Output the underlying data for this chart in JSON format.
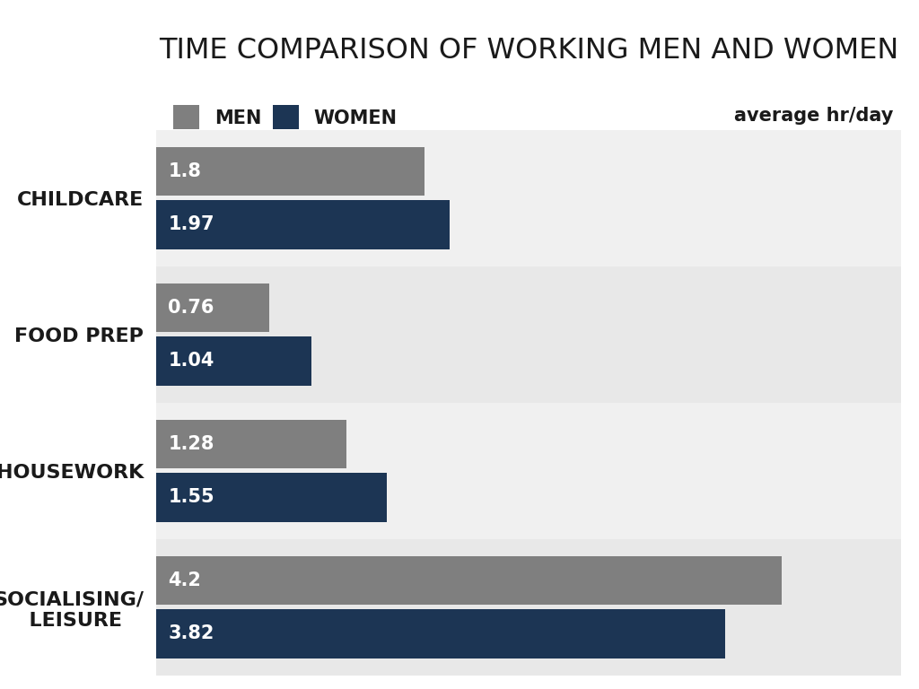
{
  "title": "TIME COMPARISON OF WORKING MEN AND WOMEN",
  "subtitle": "average hr/day",
  "categories": [
    "CHILDCARE",
    "FOOD PREP",
    "HOUSEWORK",
    "SOCIALISING/\nLEISURE"
  ],
  "cat_labels": [
    "CHILDCARE",
    "FOOD PREP",
    "HOUSEWORK",
    "SOCIALISING/\n  LEISURE"
  ],
  "men_values": [
    1.8,
    0.76,
    1.28,
    4.2
  ],
  "women_values": [
    1.97,
    1.04,
    1.55,
    3.82
  ],
  "men_color": "#7f7f7f",
  "women_color": "#1c3554",
  "text_color": "#1a1a1a",
  "band_colors": [
    "#e8e8e8",
    "#f0f0f0"
  ],
  "title_fontsize": 23,
  "label_fontsize": 16,
  "value_fontsize": 15,
  "legend_fontsize": 15,
  "xlim": [
    0,
    5
  ],
  "bar_height": 0.36
}
